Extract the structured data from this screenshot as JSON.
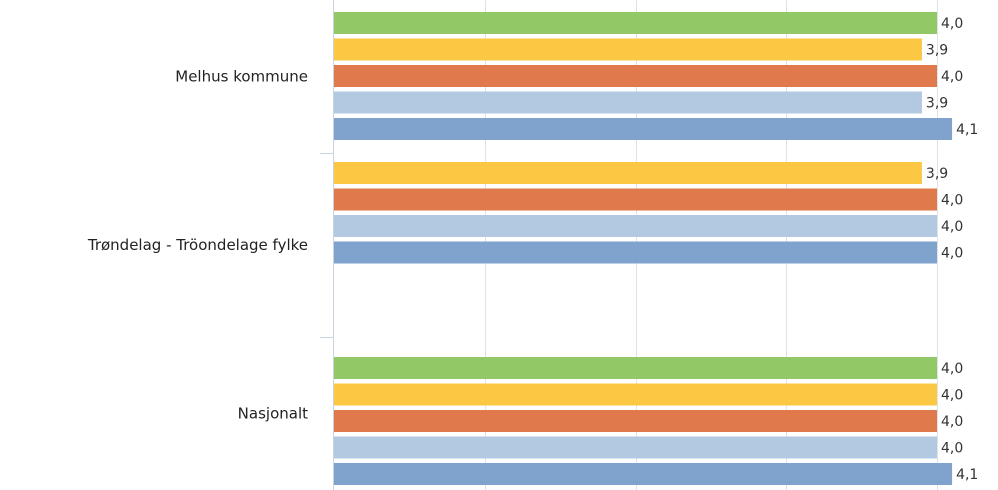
{
  "chart_data": {
    "type": "bar",
    "orientation": "horizontal",
    "categories": [
      "Melhus kommune",
      "Trøndelag - Tröondelage fylke",
      "Nasjonalt"
    ],
    "series": [
      {
        "color": "#92c966",
        "values": [
          4.0,
          null,
          4.0
        ],
        "labels": [
          "4,0",
          null,
          "4,0"
        ]
      },
      {
        "color": "#fcc844",
        "values": [
          3.9,
          3.9,
          4.0
        ],
        "labels": [
          "3,9",
          "3,9",
          "4,0"
        ]
      },
      {
        "color": "#e07a4d",
        "values": [
          4.0,
          4.0,
          4.0
        ],
        "labels": [
          "4,0",
          "4,0",
          "4,0"
        ]
      },
      {
        "color": "#b2c9e1",
        "values": [
          3.9,
          4.0,
          4.0
        ],
        "labels": [
          "3,9",
          "4,0",
          "4,0"
        ]
      },
      {
        "color": "#7fa3cc",
        "values": [
          4.1,
          4.0,
          4.1
        ],
        "labels": [
          "4,1",
          "4,0",
          "4,1"
        ]
      }
    ],
    "xlim": [
      0,
      4.0
    ],
    "x_gridlines": [
      1.0,
      2.0,
      3.0,
      4.0
    ],
    "grid": true,
    "legend": "none"
  }
}
